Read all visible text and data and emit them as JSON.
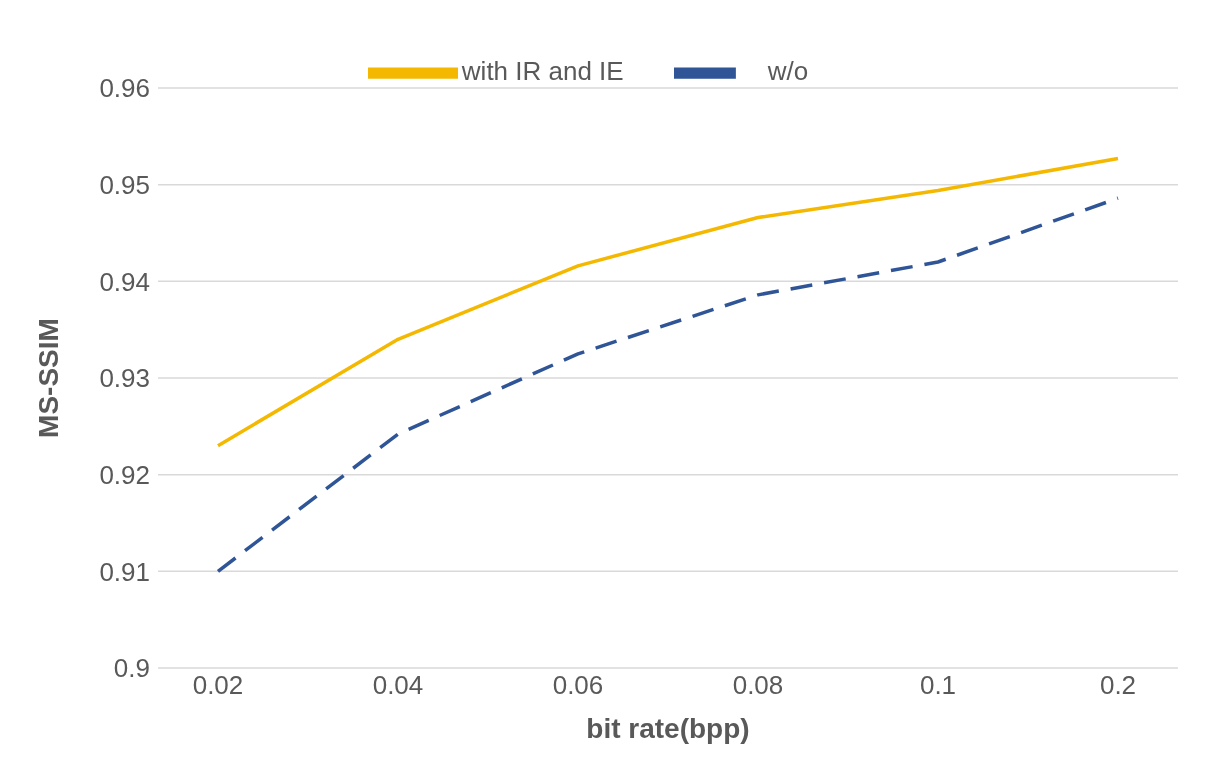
{
  "chart_data": {
    "type": "line",
    "xlabel": "bit rate(bpp)",
    "ylabel": "MS-SSIM",
    "categories": [
      "0.02",
      "0.04",
      "0.06",
      "0.08",
      "0.1",
      "0.2"
    ],
    "series": [
      {
        "name": "with IR and IE",
        "color": "#f5b800",
        "values": [
          0.923,
          0.934,
          0.9416,
          0.9466,
          0.9494,
          0.9527
        ],
        "line_style": "solid"
      },
      {
        "name": "w/o",
        "color": "#2f5597",
        "values": [
          0.91,
          0.9242,
          0.9325,
          0.9386,
          0.942,
          0.9486
        ],
        "line_style": "dashed"
      }
    ],
    "ylim": [
      0.9,
      0.96
    ],
    "yticks": [
      0.9,
      0.91,
      0.92,
      0.93,
      0.94,
      0.95,
      0.96
    ],
    "grid": "y",
    "legend": "top",
    "marker": "none"
  }
}
